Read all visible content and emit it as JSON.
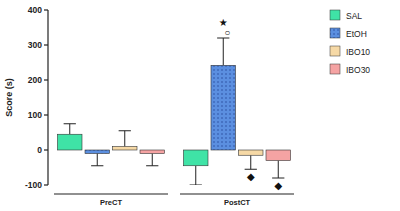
{
  "chart_data": {
    "type": "bar",
    "y_label": "Score (s)",
    "categories": [
      "PreCT",
      "PostCT"
    ],
    "series": [
      {
        "name": "SAL",
        "color": "#3fe3a6",
        "values": [
          45,
          -45
        ],
        "errors": [
          30,
          55
        ]
      },
      {
        "name": "EtOH",
        "color": "#5b8fe0",
        "values": [
          -10,
          242
        ],
        "errors": [
          35,
          78
        ]
      },
      {
        "name": "IBO10",
        "color": "#f6d9a6",
        "values": [
          10,
          -15
        ],
        "errors": [
          45,
          40
        ]
      },
      {
        "name": "IBO30",
        "color": "#f5a3a3",
        "values": [
          -10,
          -30
        ],
        "errors": [
          35,
          50
        ]
      }
    ],
    "annotations": [
      {
        "text": "★",
        "series": 1,
        "category": 1
      },
      {
        "text": "○",
        "series": 1,
        "category": 1
      },
      {
        "text": "◆",
        "series": 2,
        "category": 1
      },
      {
        "text": "◆",
        "series": 3,
        "category": 1
      }
    ],
    "ylim": [
      -100,
      400
    ],
    "yticks": [
      -100,
      0,
      100,
      200,
      300,
      400
    ],
    "grid": false,
    "legend": "right"
  }
}
